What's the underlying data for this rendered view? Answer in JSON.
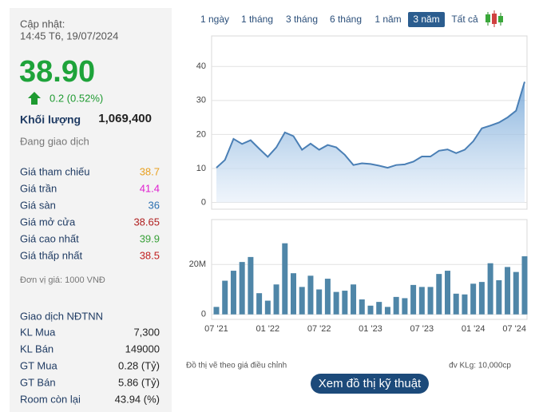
{
  "sidebar": {
    "update_label": "Cập nhật:",
    "update_time": "14:45 T6, 19/07/2024",
    "price": "38.90",
    "change": "0.2 (0.52%)",
    "volume_label": "Khối lượng",
    "volume": "1,069,400",
    "status": "Đang giao dịch",
    "rows": [
      {
        "label": "Giá tham chiếu",
        "value": "38.7",
        "color": "#e8a020"
      },
      {
        "label": "Giá trần",
        "value": "41.4",
        "color": "#e020d0"
      },
      {
        "label": "Giá sàn",
        "value": "36",
        "color": "#2a6fb0"
      },
      {
        "label": "Giá mở cửa",
        "value": "38.65",
        "color": "#b02020"
      },
      {
        "label": "Giá cao nhất",
        "value": "39.9",
        "color": "#38a038"
      },
      {
        "label": "Giá thấp nhất",
        "value": "38.5",
        "color": "#c02020"
      }
    ],
    "unit_note": "Đơn vị giá: 1000 VNĐ",
    "foreign_title": "Giao dịch NĐTNN",
    "foreign_rows": [
      {
        "label": "KL Mua",
        "value": "7,300"
      },
      {
        "label": "KL Bán",
        "value": "149000"
      },
      {
        "label": "GT Mua",
        "value": "0.28 (Tỷ)"
      },
      {
        "label": "GT Bán",
        "value": "5.86 (Tỷ)"
      },
      {
        "label": "Room còn lại",
        "value": "43.94 (%)"
      }
    ]
  },
  "tabs": [
    {
      "label": "1 ngày"
    },
    {
      "label": "1 tháng"
    },
    {
      "label": "3 tháng"
    },
    {
      "label": "6 tháng"
    },
    {
      "label": "1 năm"
    },
    {
      "label": "3 năm",
      "active": true
    },
    {
      "label": "Tất cả"
    }
  ],
  "chart_data": [
    {
      "type": "area",
      "color": "#4a7fb5",
      "values": [
        10.2,
        12.5,
        18.7,
        17.2,
        18.3,
        15.8,
        13.4,
        16.2,
        20.6,
        19.5,
        15.5,
        17.3,
        15.5,
        16.9,
        16.2,
        14.0,
        11.0,
        11.5,
        11.3,
        10.8,
        10.2,
        11.0,
        11.2,
        12.0,
        13.5,
        13.5,
        15.2,
        15.6,
        14.5,
        15.5,
        18.0,
        21.8,
        22.6,
        23.5,
        25.0,
        27.0,
        35.5
      ],
      "ylim": [
        -2,
        49
      ],
      "yticks": [
        0,
        10,
        20,
        30,
        40
      ],
      "grid": true
    },
    {
      "type": "bar",
      "color": "#4f86a8",
      "categories": [
        "07 '21",
        null,
        null,
        null,
        null,
        null,
        "01 '22",
        null,
        null,
        null,
        null,
        null,
        "07 '22",
        null,
        null,
        null,
        null,
        null,
        "01 '23",
        null,
        null,
        null,
        null,
        null,
        "07 '23",
        null,
        null,
        null,
        null,
        null,
        "01 '24",
        null,
        null,
        null,
        null,
        null,
        "07 '24"
      ],
      "values": [
        3000000,
        13500000,
        17500000,
        21000000,
        23000000,
        8500000,
        5500000,
        12000000,
        28500000,
        16500000,
        11000000,
        15500000,
        10000000,
        14300000,
        9000000,
        9500000,
        12000000,
        6000000,
        3500000,
        5000000,
        3000000,
        7000000,
        6500000,
        11800000,
        11000000,
        11000000,
        16200000,
        17500000,
        8300000,
        8000000,
        12300000,
        13000000,
        20500000,
        13700000,
        19000000,
        17000000,
        23300000
      ],
      "ylim": [
        -2000000,
        38000000
      ],
      "yticks": [
        0,
        {
          "value": 20000000,
          "label": "20M"
        }
      ],
      "grid": true
    }
  ],
  "footnote_left": "Đồ thị vẽ theo giá điều chỉnh",
  "footnote_right": "đv KLg: 10,000cp",
  "button": "Xem đồ thị kỹ thuật"
}
